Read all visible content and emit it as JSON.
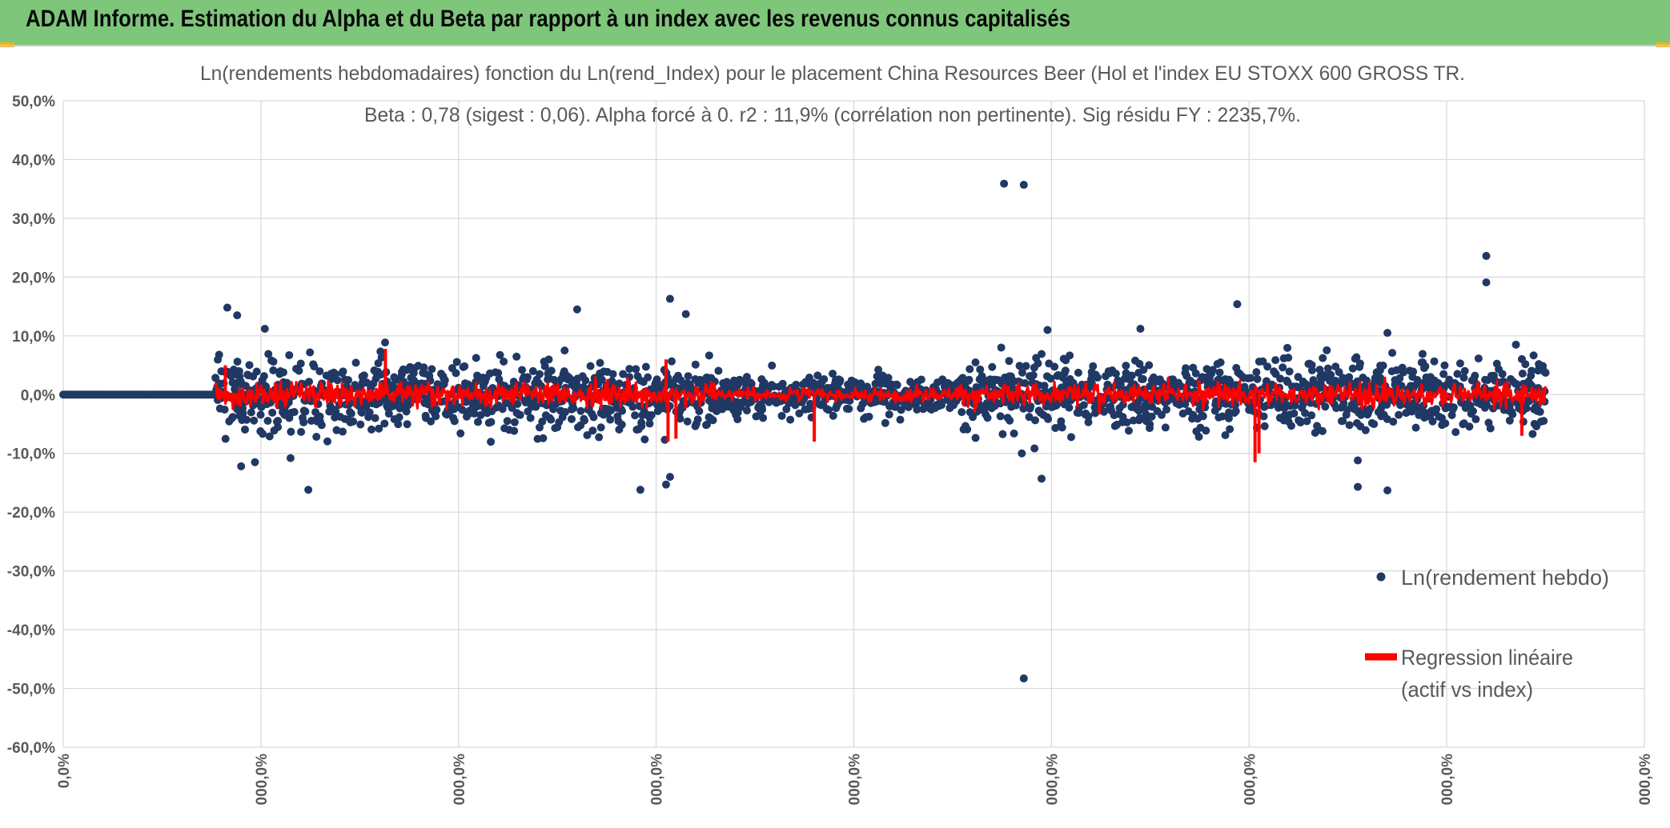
{
  "header": {
    "title": "ADAM Informe. Estimation du Alpha et du Beta par rapport à un index avec les revenus connus capitalisés"
  },
  "colors": {
    "banner": "#7dc67a",
    "scatter": "#203864",
    "regression": "#ff0000",
    "grid": "#d9d9d9",
    "text": "#595959"
  },
  "chart_data": {
    "type": "scatter",
    "title": "Ln(rendements hebdomadaires) fonction du Ln(rend_Index) pour le placement China Resources Beer (Hol et l'index EU STOXX 600 GROSS TR.",
    "subtitle": "Beta : 0,78 (sigest : 0,06). Alpha forcé à 0. r2 : 11,9% (corrélation non pertinente). Sig résidu FY : 2235,7%.",
    "xlabel": "",
    "ylabel": "",
    "ylim": [
      -60,
      50
    ],
    "xlim": [
      0,
      8
    ],
    "grid": true,
    "legend_position": "right",
    "y_tick_labels": [
      "50,0%",
      "40,0%",
      "30,0%",
      "20,0%",
      "10,0%",
      "0,0%",
      "-10,0%",
      "-20,0%",
      "-30,0%",
      "-40,0%",
      "-50,0%",
      "-60,0%"
    ],
    "x_tick_labels": [
      "0,0%",
      "000,0%",
      "000,0%",
      "000,0%",
      "000,0%",
      "000,0%",
      "000,0%",
      "000,0%",
      "000,0%"
    ],
    "series": [
      {
        "name": "Ln(rendement hebdo)",
        "kind": "scatter",
        "description": "weekly log returns (%), dense band around 0",
        "zero_segment_x": [
          0,
          0.77
        ],
        "noise_range_x": [
          0.77,
          7.5
        ],
        "outliers": [
          {
            "x": 0.83,
            "y": 14.8
          },
          {
            "x": 0.88,
            "y": 13.5
          },
          {
            "x": 0.9,
            "y": -12.2
          },
          {
            "x": 0.97,
            "y": -11.5
          },
          {
            "x": 1.02,
            "y": 11.2
          },
          {
            "x": 1.15,
            "y": -10.8
          },
          {
            "x": 1.24,
            "y": -16.2
          },
          {
            "x": 2.6,
            "y": 14.5
          },
          {
            "x": 2.92,
            "y": -16.2
          },
          {
            "x": 3.07,
            "y": 16.3
          },
          {
            "x": 3.05,
            "y": -15.3
          },
          {
            "x": 3.07,
            "y": -14.0
          },
          {
            "x": 3.15,
            "y": 13.7
          },
          {
            "x": 4.85,
            "y": -10.0
          },
          {
            "x": 4.76,
            "y": 35.9
          },
          {
            "x": 4.86,
            "y": 35.7
          },
          {
            "x": 4.86,
            "y": -48.3
          },
          {
            "x": 4.95,
            "y": -14.3
          },
          {
            "x": 4.98,
            "y": 11.0
          },
          {
            "x": 5.45,
            "y": 11.2
          },
          {
            "x": 5.94,
            "y": 15.4
          },
          {
            "x": 6.55,
            "y": -11.2
          },
          {
            "x": 6.55,
            "y": -15.7
          },
          {
            "x": 6.7,
            "y": -16.3
          },
          {
            "x": 6.7,
            "y": 10.5
          },
          {
            "x": 7.2,
            "y": 23.6
          },
          {
            "x": 7.2,
            "y": 19.1
          },
          {
            "x": 7.35,
            "y": 8.5
          }
        ]
      },
      {
        "name": "Regression linéaire (actif vs index)",
        "kind": "line",
        "description": "beta 0.78 × index weekly log return (%)",
        "spikes": [
          {
            "x": 0.82,
            "y": 5.0
          },
          {
            "x": 1.63,
            "y": 7.8
          },
          {
            "x": 3.05,
            "y": 6.0
          },
          {
            "x": 3.06,
            "y": -8.0
          },
          {
            "x": 3.1,
            "y": -7.5
          },
          {
            "x": 3.8,
            "y": -8.0
          },
          {
            "x": 6.03,
            "y": -11.5
          },
          {
            "x": 6.05,
            "y": -10.0
          },
          {
            "x": 7.38,
            "y": -7.0
          }
        ]
      }
    ]
  },
  "legend": {
    "scatter_label": "Ln(rendement hebdo)",
    "line_label_1": "Regression linéaire",
    "line_label_2": "(actif vs index)"
  }
}
